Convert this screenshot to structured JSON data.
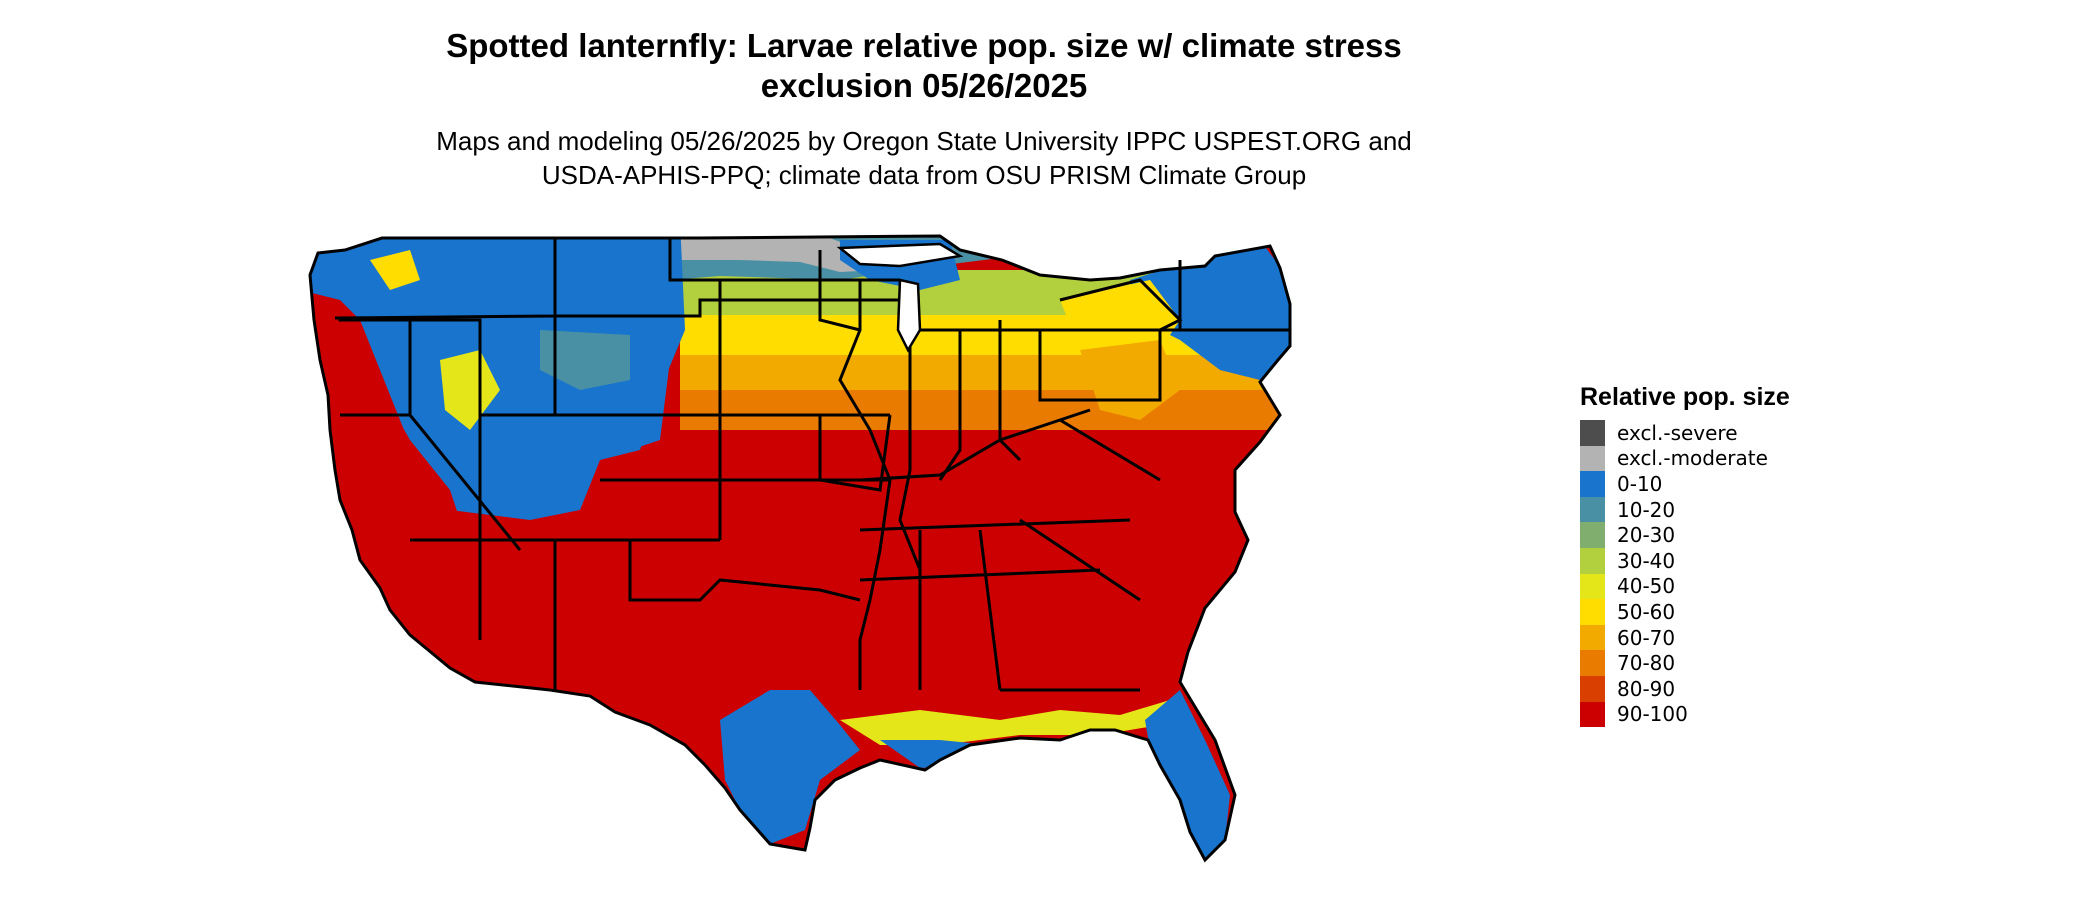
{
  "title": {
    "line1": "Spotted lanternfly: Larvae relative pop. size w/ climate stress",
    "line2": "exclusion 05/26/2025"
  },
  "subtitle": {
    "line1": "Maps and modeling 05/26/2025 by Oregon State University IPPC USPEST.ORG and",
    "line2": "USDA-APHIS-PPQ; climate data from OSU PRISM Climate Group"
  },
  "legend": {
    "title": "Relative pop. size",
    "items": [
      {
        "label": "excl.-severe",
        "color": "#4d4d4d"
      },
      {
        "label": "excl.-moderate",
        "color": "#b3b3b3"
      },
      {
        "label": "0-10",
        "color": "#1874cd"
      },
      {
        "label": "10-20",
        "color": "#4a90a4"
      },
      {
        "label": "20-30",
        "color": "#7fae6e"
      },
      {
        "label": "30-40",
        "color": "#b2cf3e"
      },
      {
        "label": "40-50",
        "color": "#e5e619"
      },
      {
        "label": "50-60",
        "color": "#ffdd00"
      },
      {
        "label": "60-70",
        "color": "#f2a900"
      },
      {
        "label": "70-80",
        "color": "#e87b00"
      },
      {
        "label": "80-90",
        "color": "#d94000"
      },
      {
        "label": "90-100",
        "color": "#cc0000"
      }
    ]
  }
}
